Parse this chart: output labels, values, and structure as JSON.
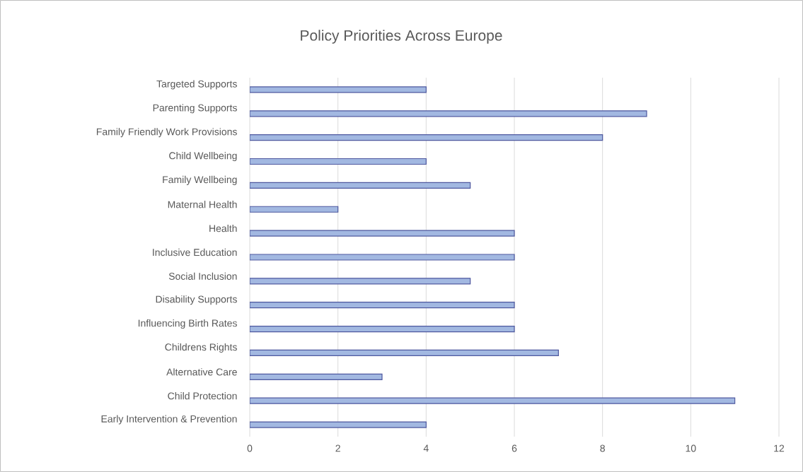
{
  "chart_data": {
    "type": "bar",
    "orientation": "horizontal",
    "title": "Policy Priorities Across Europe",
    "categories": [
      "Targeted Supports",
      "Parenting Supports",
      "Family Friendly Work Provisions",
      "Child Wellbeing",
      "Family Wellbeing",
      "Maternal Health",
      "Health",
      "Inclusive Education",
      "Social Inclusion",
      "Disability Supports",
      "Influencing Birth Rates",
      "Childrens Rights",
      "Alternative Care",
      "Child Protection",
      "Early Intervention & Prevention"
    ],
    "values": [
      4,
      9,
      8,
      4,
      5,
      2,
      6,
      6,
      5,
      6,
      6,
      7,
      3,
      11,
      4
    ],
    "color": "#a2b8e1",
    "xlim": [
      0,
      12
    ],
    "xticks": [
      0,
      2,
      4,
      6,
      8,
      10,
      12
    ],
    "grid": "x"
  }
}
